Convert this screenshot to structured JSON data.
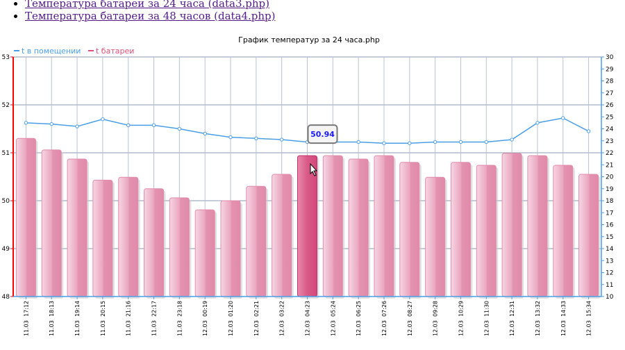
{
  "links": [
    {
      "label": "Температура батареи за 24 часа (data3.php)"
    },
    {
      "label": "Температура батареи за 48 часов (data4.php)"
    }
  ],
  "chart_data": {
    "type": "bar+line",
    "title": "График температур за 24 часа.php",
    "legend": {
      "placement": "top-left",
      "entries": [
        "t в помещении",
        "t батареи"
      ]
    },
    "categories": [
      "11.03  17:12",
      "11.03  18:13",
      "11.03  19:14",
      "11.03  20:15",
      "11.03  21:16",
      "11.03  22:17",
      "11.03  23:18",
      "12.03  00:19",
      "12.03  01:20",
      "12.03  02:21",
      "12.03  03:22",
      "12.03  04:23",
      "12.03  05:24",
      "12.03  06:25",
      "12.03  07:26",
      "12.03  08:27",
      "12.03  09:28",
      "12.03  10:29",
      "12.03  11:30",
      "12.03  12:31",
      "12.03  13:32",
      "12.03  14:33",
      "12.03  15:34"
    ],
    "series": [
      {
        "name": "t батареи",
        "type": "bar",
        "axis": "left",
        "color": "#e0789c",
        "values": [
          51.3,
          51.06,
          50.87,
          50.43,
          50.49,
          50.25,
          50.06,
          49.81,
          50.0,
          50.3,
          50.55,
          50.94,
          50.94,
          50.87,
          50.94,
          50.8,
          50.49,
          50.8,
          50.74,
          50.99,
          50.94,
          50.74,
          50.55
        ]
      },
      {
        "name": "t в помещении",
        "type": "line",
        "axis": "right",
        "color": "#4a9ee8",
        "values": [
          24.5,
          24.4,
          24.2,
          24.8,
          24.3,
          24.3,
          24.0,
          23.6,
          23.3,
          23.2,
          23.1,
          22.9,
          22.9,
          22.9,
          22.8,
          22.8,
          22.9,
          22.9,
          22.9,
          23.1,
          24.5,
          24.9,
          23.8
        ]
      }
    ],
    "left_axis": {
      "range": [
        48,
        53
      ],
      "ticks": [
        48,
        49,
        50,
        51,
        52,
        53
      ],
      "color": "#ff0000"
    },
    "right_axis": {
      "range": [
        10,
        30
      ],
      "ticks": [
        10,
        11,
        12,
        13,
        14,
        15,
        16,
        17,
        18,
        19,
        20,
        21,
        22,
        23,
        24,
        25,
        26,
        27,
        28,
        29,
        30
      ],
      "color": "#4a9ee8"
    },
    "grid": true,
    "highlighted_index": 11,
    "tooltip": "50.94"
  }
}
